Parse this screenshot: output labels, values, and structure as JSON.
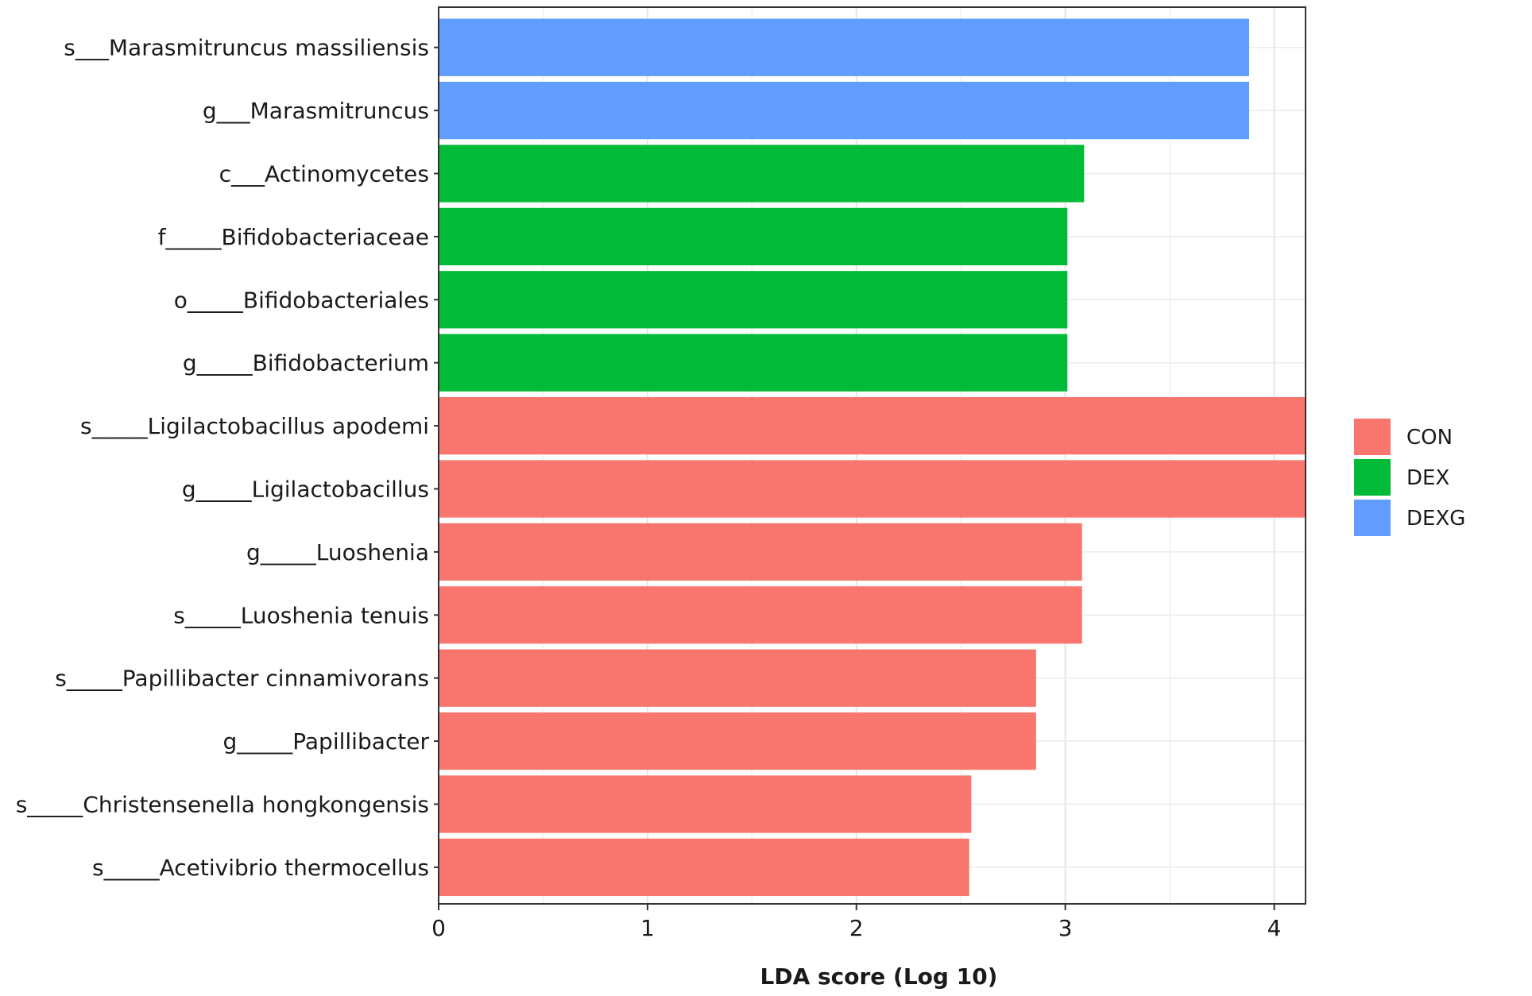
{
  "chart_data": {
    "type": "bar",
    "orientation": "horizontal",
    "title": "",
    "xlabel": "LDA score (Log 10)",
    "ylabel": "",
    "xlim": [
      0,
      4.15
    ],
    "xticks": [
      0,
      1,
      2,
      3,
      4
    ],
    "grid": true,
    "legend_position": "right",
    "legend": [
      {
        "name": "CON",
        "color": "#F8766D"
      },
      {
        "name": "DEX",
        "color": "#00BA38"
      },
      {
        "name": "DEXG",
        "color": "#619CFF"
      }
    ],
    "bars": [
      {
        "label": "s___Marasmitruncus  massiliensis",
        "value": 3.88,
        "group": "DEXG"
      },
      {
        "label": "g___Marasmitruncus",
        "value": 3.88,
        "group": "DEXG"
      },
      {
        "label": "c___Actinomycetes",
        "value": 3.09,
        "group": "DEX"
      },
      {
        "label": "f_____Bifidobacteriaceae",
        "value": 3.01,
        "group": "DEX"
      },
      {
        "label": "o_____Bifidobacteriales",
        "value": 3.01,
        "group": "DEX"
      },
      {
        "label": "g_____Bifidobacterium",
        "value": 3.01,
        "group": "DEX"
      },
      {
        "label": "s_____Ligilactobacillus  apodemi",
        "value": 4.15,
        "group": "CON"
      },
      {
        "label": "g_____Ligilactobacillus",
        "value": 4.15,
        "group": "CON"
      },
      {
        "label": "g_____Luoshenia",
        "value": 3.08,
        "group": "CON"
      },
      {
        "label": "s_____Luoshenia  tenuis",
        "value": 3.08,
        "group": "CON"
      },
      {
        "label": "s_____Papillibacter  cinnamivorans",
        "value": 2.86,
        "group": "CON"
      },
      {
        "label": "g_____Papillibacter",
        "value": 2.86,
        "group": "CON"
      },
      {
        "label": "s_____Christensenella  hongkongensis",
        "value": 2.55,
        "group": "CON"
      },
      {
        "label": "s_____Acetivibrio  thermocellus",
        "value": 2.54,
        "group": "CON"
      }
    ]
  }
}
